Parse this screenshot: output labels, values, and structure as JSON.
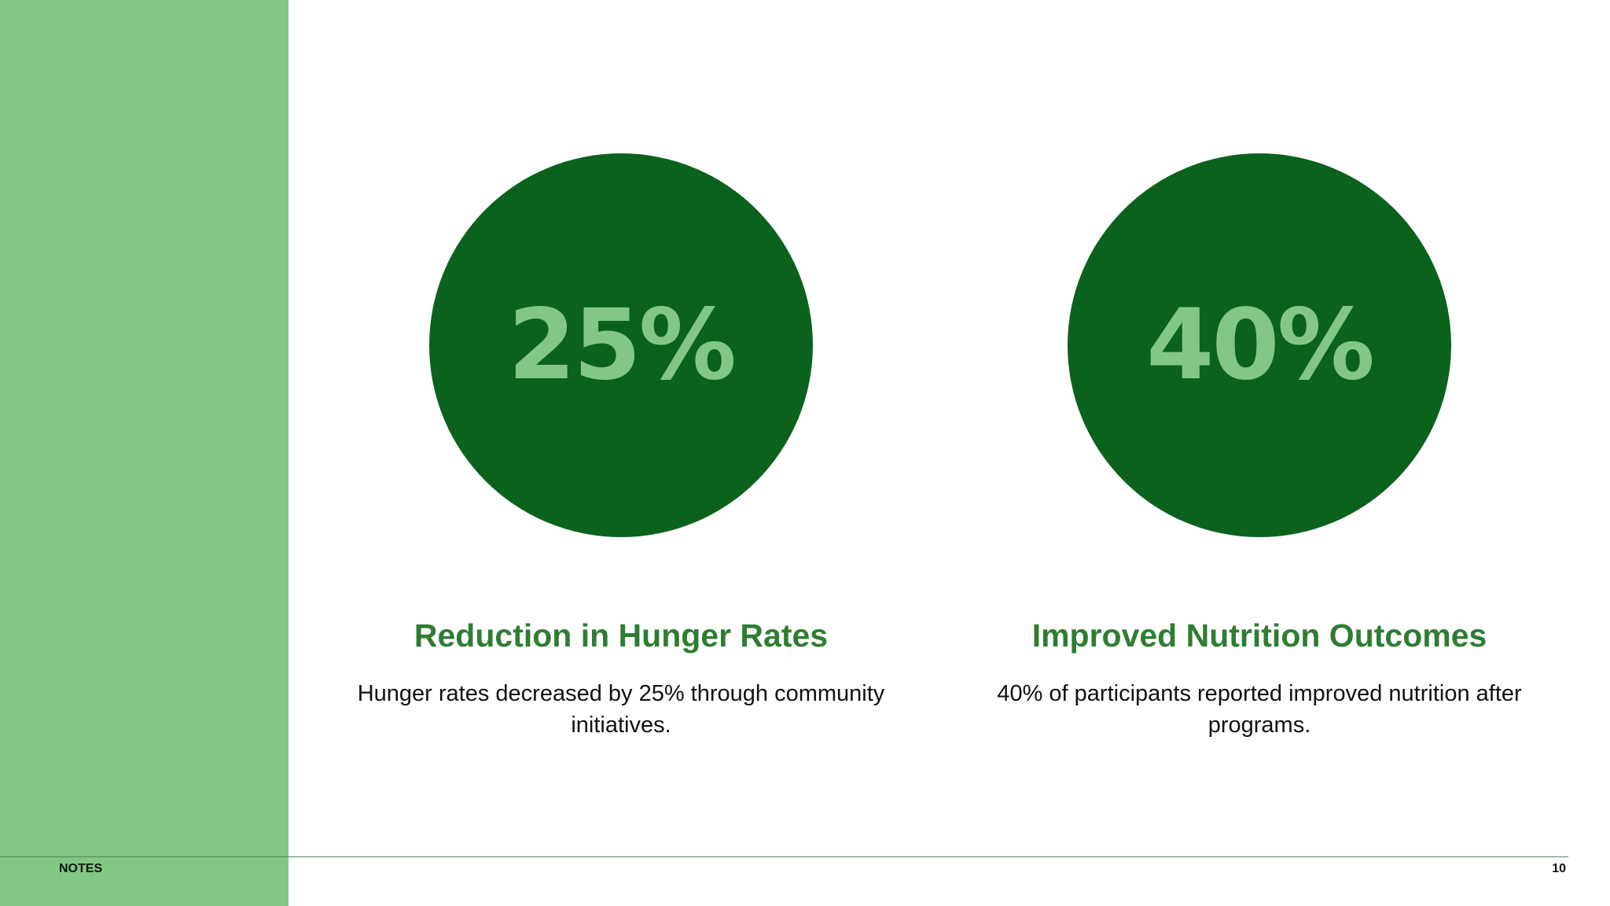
{
  "colors": {
    "sidebar": "#82c884",
    "circle": "#0b621d",
    "stat_value": "#82c884",
    "heading": "#2e7d32",
    "body_text": "#111111",
    "rule": "#4d8a55"
  },
  "stats": [
    {
      "value": "25%",
      "heading": "Reduction in Hunger Rates",
      "description": "Hunger rates decreased by 25% through community initiatives."
    },
    {
      "value": "40%",
      "heading": "Improved Nutrition Outcomes",
      "description": "40% of participants reported improved nutrition after programs."
    }
  ],
  "footer": {
    "notes_label": "NOTES",
    "page_number": "10"
  }
}
